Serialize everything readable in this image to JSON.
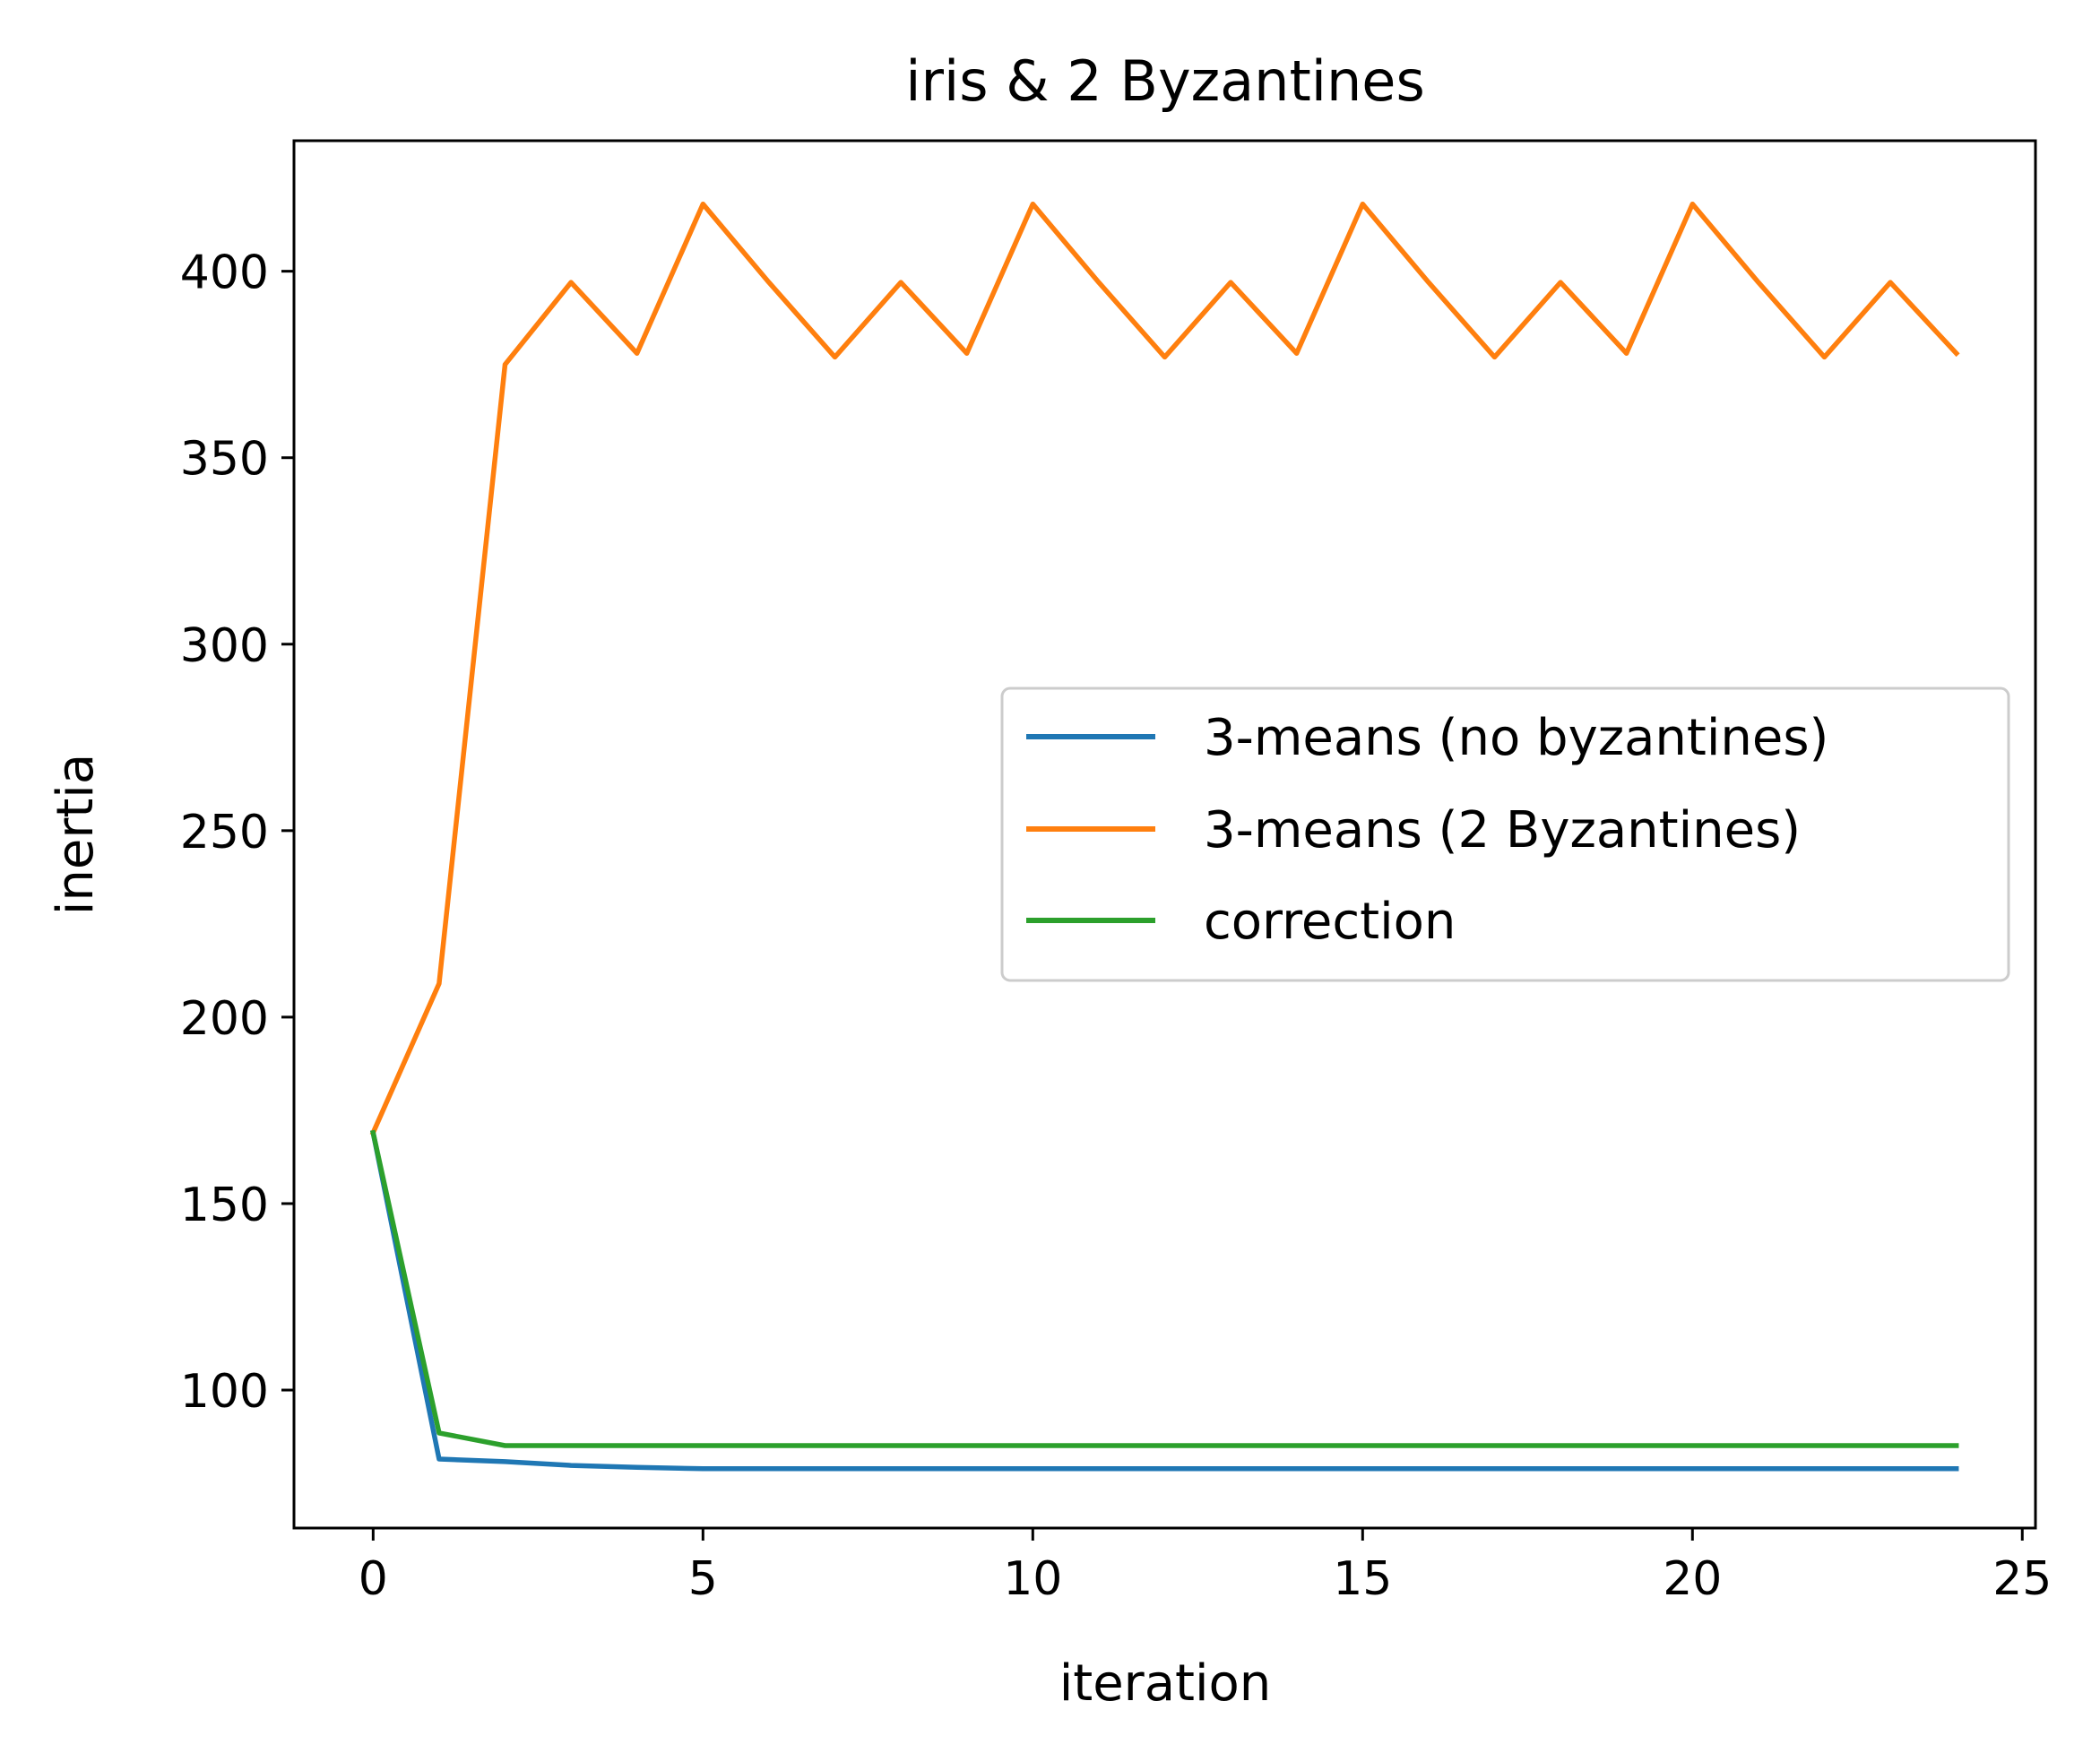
{
  "chart_data": {
    "type": "line",
    "title": "iris & 2 Byzantines",
    "xlabel": "iteration",
    "ylabel": "inertia",
    "xlim": [
      -1.2,
      25.2
    ],
    "ylim": [
      63,
      435
    ],
    "x_ticks": [
      0,
      5,
      10,
      15,
      20,
      25
    ],
    "y_ticks": [
      100,
      150,
      200,
      250,
      300,
      350,
      400
    ],
    "grid": false,
    "legend_position": "center-right",
    "x": [
      0,
      1,
      2,
      3,
      4,
      5,
      6,
      7,
      8,
      9,
      10,
      11,
      12,
      13,
      14,
      15,
      16,
      17,
      18,
      19,
      20,
      21,
      22,
      23,
      24
    ],
    "series": [
      {
        "name": "3-means (no byzantines)",
        "color": "#1f77b4",
        "values": [
          169,
          81.5,
          80.8,
          79.8,
          79.3,
          78.9,
          78.9,
          78.9,
          78.9,
          78.9,
          78.9,
          78.9,
          78.9,
          78.9,
          78.9,
          78.9,
          78.9,
          78.9,
          78.9,
          78.9,
          78.9,
          78.9,
          78.9,
          78.9,
          78.9
        ]
      },
      {
        "name": "3-means (2 Byzantines)",
        "color": "#ff7f0e",
        "values": [
          169,
          209,
          375,
          397,
          378,
          418,
          397,
          377,
          397,
          378,
          418,
          397,
          377,
          397,
          378,
          418,
          397,
          377,
          397,
          378,
          418,
          397,
          377,
          397,
          378
        ]
      },
      {
        "name": "correction",
        "color": "#2ca02c",
        "values": [
          169,
          88.5,
          85.1,
          85.1,
          85.1,
          85.1,
          85.1,
          85.1,
          85.1,
          85.1,
          85.1,
          85.1,
          85.1,
          85.1,
          85.1,
          85.1,
          85.1,
          85.1,
          85.1,
          85.1,
          85.1,
          85.1,
          85.1,
          85.1,
          85.1
        ]
      }
    ]
  }
}
